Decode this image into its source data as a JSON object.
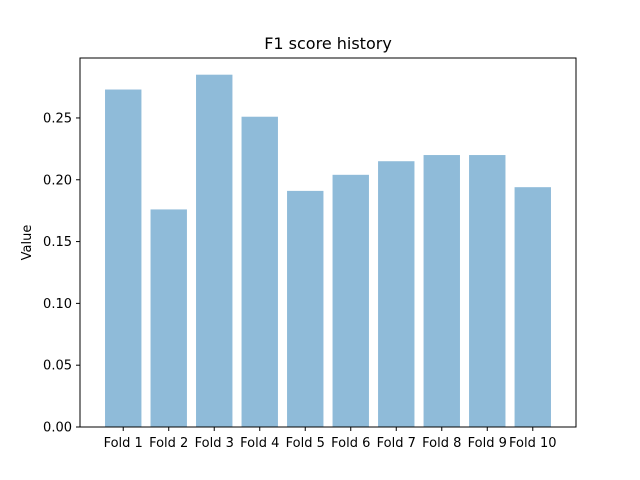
{
  "chart_data": {
    "type": "bar",
    "title": "F1 score history",
    "xlabel": "",
    "ylabel": "Value",
    "categories": [
      "Fold 1",
      "Fold 2",
      "Fold 3",
      "Fold 4",
      "Fold 5",
      "Fold 6",
      "Fold 7",
      "Fold 8",
      "Fold 9",
      "Fold 10"
    ],
    "values": [
      0.273,
      0.176,
      0.285,
      0.251,
      0.191,
      0.204,
      0.215,
      0.22,
      0.22,
      0.194
    ],
    "ylim": [
      0,
      0.2985
    ],
    "yticks": [
      0.0,
      0.05,
      0.1,
      0.15,
      0.2,
      0.25
    ],
    "ytick_labels": [
      "0.00",
      "0.05",
      "0.10",
      "0.15",
      "0.20",
      "0.25"
    ],
    "grid": false,
    "legend": "none",
    "colors": {
      "bar": "#1f77b4",
      "axis": "#000000"
    }
  }
}
